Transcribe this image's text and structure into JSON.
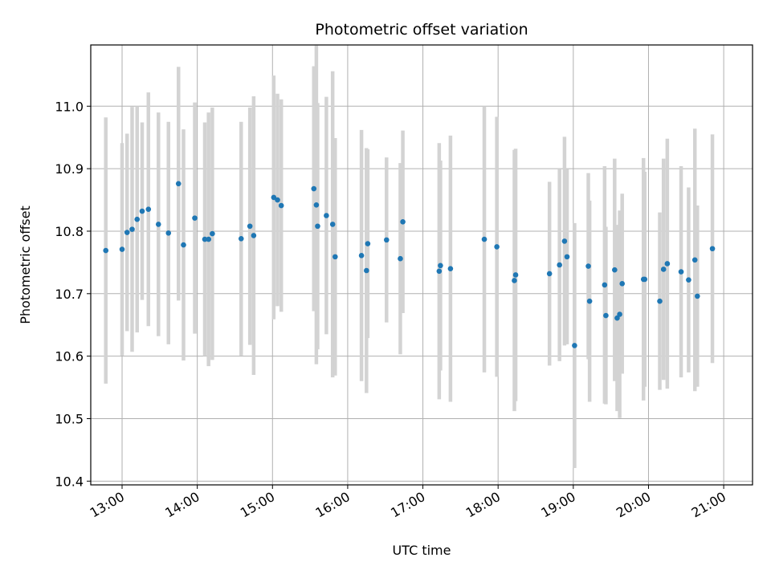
{
  "chart_data": {
    "type": "scatter",
    "title": "Photometric offset variation",
    "xlabel": "UTC time",
    "ylabel": "Photometric offset",
    "xlim": [
      "12:35",
      "21:23"
    ],
    "ylim": [
      10.394,
      11.098
    ],
    "grid": true,
    "x_ticks": [
      "13:00",
      "14:00",
      "15:00",
      "16:00",
      "17:00",
      "18:00",
      "19:00",
      "20:00",
      "21:00"
    ],
    "y_ticks": [
      "10.4",
      "10.5",
      "10.6",
      "10.7",
      "10.8",
      "10.9",
      "11.0"
    ],
    "marker_color": "#1f77b4",
    "errorbar_color": "#d3d3d3",
    "series": [
      {
        "x": [
          "12:47",
          "13:00",
          "13:04",
          "13:08",
          "13:12",
          "13:16",
          "13:21",
          "13:29",
          "13:37",
          "13:45",
          "13:49",
          "13:58",
          "14:06",
          "14:09",
          "14:12",
          "14:35",
          "14:42",
          "14:45",
          "15:01",
          "15:04",
          "15:07",
          "15:33",
          "15:35",
          "15:36",
          "15:43",
          "15:48",
          "15:50",
          "16:11",
          "16:15",
          "16:16",
          "16:31",
          "16:42",
          "16:44",
          "17:13",
          "17:14",
          "17:22",
          "17:49",
          "17:59",
          "18:13",
          "18:14",
          "18:41",
          "18:49",
          "18:53",
          "18:55",
          "19:01",
          "19:12",
          "19:13",
          "19:25",
          "19:26",
          "19:33",
          "19:35",
          "19:37",
          "19:39",
          "19:56",
          "19:57",
          "20:09",
          "20:12",
          "20:15",
          "20:26",
          "20:32",
          "20:37",
          "20:39",
          "20:51"
        ],
        "y": [
          10.769,
          10.771,
          10.798,
          10.803,
          10.819,
          10.832,
          10.835,
          10.811,
          10.797,
          10.876,
          10.778,
          10.821,
          10.787,
          10.787,
          10.796,
          10.788,
          10.808,
          10.793,
          10.854,
          10.85,
          10.841,
          10.868,
          10.842,
          10.808,
          10.825,
          10.811,
          10.759,
          10.761,
          10.737,
          10.78,
          10.786,
          10.756,
          10.815,
          10.736,
          10.745,
          10.74,
          10.787,
          10.775,
          10.721,
          10.73,
          10.732,
          10.746,
          10.784,
          10.759,
          10.617,
          10.744,
          10.688,
          10.714,
          10.665,
          10.738,
          10.661,
          10.667,
          10.716,
          10.723,
          10.723,
          10.688,
          10.739,
          10.748,
          10.735,
          10.722,
          10.754,
          10.696,
          10.772
        ],
        "err": [
          0.213,
          0.17,
          0.158,
          0.196,
          0.181,
          0.142,
          0.187,
          0.179,
          0.178,
          0.187,
          0.185,
          0.185,
          0.187,
          0.203,
          0.202,
          0.187,
          0.19,
          0.223,
          0.195,
          0.17,
          0.17,
          0.196,
          0.255,
          0.197,
          0.19,
          0.245,
          0.19,
          0.201,
          0.196,
          0.151,
          0.132,
          0.153,
          0.146,
          0.205,
          0.168,
          0.213,
          0.213,
          0.208,
          0.209,
          0.202,
          0.147,
          0.154,
          0.167,
          0.14,
          0.196,
          0.149,
          0.161,
          0.19,
          0.142,
          0.178,
          0.149,
          0.166,
          0.144,
          0.194,
          0.172,
          0.142,
          0.177,
          0.2,
          0.169,
          0.148,
          0.21,
          0.145,
          0.183
        ]
      }
    ]
  }
}
